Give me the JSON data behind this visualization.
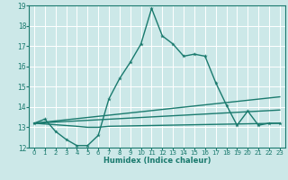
{
  "title": "",
  "xlabel": "Humidex (Indice chaleur)",
  "bg_color": "#cce8e8",
  "line_color": "#1a7a6e",
  "grid_color": "#ffffff",
  "xlim": [
    -0.5,
    23.5
  ],
  "ylim": [
    12,
    19
  ],
  "xticks": [
    0,
    1,
    2,
    3,
    4,
    5,
    6,
    7,
    8,
    9,
    10,
    11,
    12,
    13,
    14,
    15,
    16,
    17,
    18,
    19,
    20,
    21,
    22,
    23
  ],
  "yticks": [
    12,
    13,
    14,
    15,
    16,
    17,
    18,
    19
  ],
  "line1_x": [
    0,
    1,
    2,
    3,
    4,
    5,
    6,
    7,
    8,
    9,
    10,
    11,
    12,
    13,
    14,
    15,
    16,
    17,
    18,
    19,
    20,
    21,
    22,
    23
  ],
  "line1_y": [
    13.2,
    13.4,
    12.8,
    12.4,
    12.1,
    12.1,
    12.6,
    14.4,
    15.4,
    16.2,
    17.1,
    18.85,
    17.5,
    17.1,
    16.5,
    16.6,
    16.5,
    15.2,
    14.1,
    13.1,
    13.8,
    13.1,
    13.2,
    13.2
  ],
  "line2_x": [
    0,
    4,
    5,
    6,
    7,
    23
  ],
  "line2_y": [
    13.2,
    13.05,
    13.0,
    13.0,
    13.05,
    13.2
  ],
  "line3_x": [
    0,
    23
  ],
  "line3_y": [
    13.2,
    14.5
  ],
  "line4_x": [
    0,
    23
  ],
  "line4_y": [
    13.2,
    13.85
  ]
}
